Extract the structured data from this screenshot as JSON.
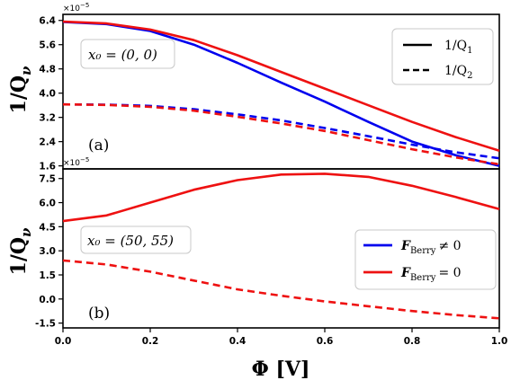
{
  "chart_data": [
    {
      "type": "line",
      "panel_tag": "(a)",
      "ylabel": "1/Q",
      "ylabel_sub": "ν",
      "exponent_label": "×10",
      "exponent_power": "−5",
      "annotation": "x₀ = (0, 0)",
      "ylim": [
        1.5,
        6.6
      ],
      "yticks": [
        1.6,
        2.4,
        3.2,
        4.0,
        4.8,
        5.6,
        6.4
      ],
      "ytick_labels": [
        "1.6",
        "2.4",
        "3.2",
        "4.0",
        "4.8",
        "5.6",
        "6.4"
      ],
      "xlim": [
        0.0,
        1.0
      ],
      "legend": {
        "position": "top-right",
        "entries": [
          {
            "label": "1/Q",
            "sub": "1",
            "style": "solid"
          },
          {
            "label": "1/Q",
            "sub": "2",
            "style": "dashed"
          }
        ]
      },
      "x": [
        0.0,
        0.1,
        0.2,
        0.3,
        0.4,
        0.5,
        0.6,
        0.7,
        0.8,
        0.9,
        1.0
      ],
      "series": [
        {
          "color": "#0000ee",
          "style": "solid",
          "values": [
            6.35,
            6.28,
            6.05,
            5.6,
            5.0,
            4.35,
            3.72,
            3.05,
            2.4,
            1.95,
            1.6
          ]
        },
        {
          "color": "#ee1111",
          "style": "solid",
          "values": [
            6.36,
            6.3,
            6.1,
            5.75,
            5.25,
            4.7,
            4.15,
            3.6,
            3.05,
            2.55,
            2.1
          ]
        },
        {
          "color": "#0000ee",
          "style": "dashed",
          "values": [
            3.63,
            3.62,
            3.58,
            3.47,
            3.3,
            3.1,
            2.85,
            2.58,
            2.3,
            2.05,
            1.85
          ]
        },
        {
          "color": "#ee1111",
          "style": "dashed",
          "values": [
            3.63,
            3.61,
            3.55,
            3.42,
            3.22,
            3.0,
            2.75,
            2.45,
            2.15,
            1.88,
            1.65
          ]
        }
      ]
    },
    {
      "type": "line",
      "panel_tag": "(b)",
      "ylabel": "1/Q",
      "ylabel_sub": "ν",
      "exponent_label": "×10",
      "exponent_power": "−5",
      "annotation": "x₀ = (50, 55)",
      "xlabel": "Φ [V]",
      "ylim": [
        -1.8,
        8.1
      ],
      "yticks": [
        -1.5,
        0.0,
        1.5,
        3.0,
        4.5,
        6.0,
        7.5
      ],
      "ytick_labels": [
        "-1.5",
        "0.0",
        "1.5",
        "3.0",
        "4.5",
        "6.0",
        "7.5"
      ],
      "xlim": [
        0.0,
        1.0
      ],
      "xticks": [
        0.0,
        0.2,
        0.4,
        0.6,
        0.8,
        1.0
      ],
      "xtick_labels": [
        "0.0",
        "0.2",
        "0.4",
        "0.6",
        "0.8",
        "1.0"
      ],
      "legend": {
        "position": "bottom-right",
        "entries": [
          {
            "label": "F",
            "sub": "Berry",
            "rel": "≠ 0",
            "color": "#0000ee"
          },
          {
            "label": "F",
            "sub": "Berry",
            "rel": "= 0",
            "color": "#ee1111"
          }
        ]
      },
      "x": [
        0.0,
        0.1,
        0.2,
        0.3,
        0.4,
        0.5,
        0.6,
        0.7,
        0.8,
        0.9,
        1.0
      ],
      "series": [
        {
          "color": "#ee1111",
          "style": "solid",
          "values": [
            4.85,
            5.2,
            6.0,
            6.8,
            7.4,
            7.75,
            7.8,
            7.6,
            7.05,
            6.35,
            5.6
          ]
        },
        {
          "color": "#ee1111",
          "style": "dashed",
          "values": [
            2.4,
            2.15,
            1.7,
            1.15,
            0.6,
            0.2,
            -0.15,
            -0.45,
            -0.75,
            -1.0,
            -1.2
          ]
        }
      ]
    }
  ]
}
